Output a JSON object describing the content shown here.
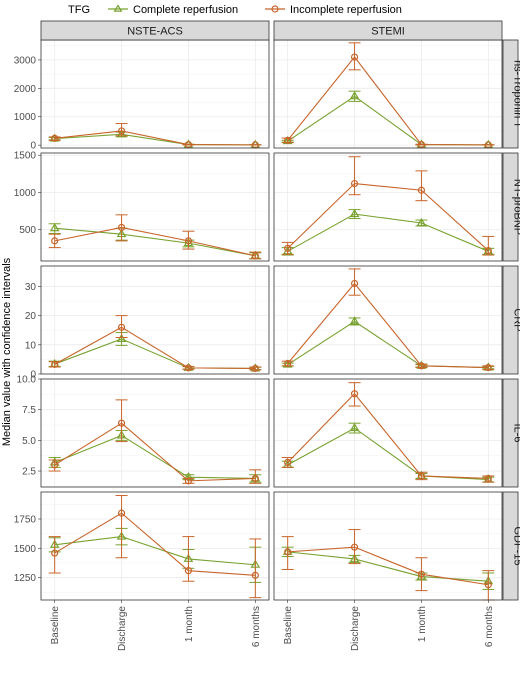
{
  "legend": {
    "title": "TFG",
    "items": [
      {
        "label": "Complete reperfusion",
        "color": "#78a22f",
        "marker": "triangle"
      },
      {
        "label": "Incomplete reperfusion",
        "color": "#c8642a",
        "marker": "circle"
      }
    ]
  },
  "y_axis_label": "Median value with confidence intervals",
  "columns": [
    "NSTE-ACS",
    "STEMI"
  ],
  "x_categories": [
    "Baseline",
    "Discharge",
    "1 month",
    "6 months"
  ],
  "chart_data": [
    {
      "type": "line",
      "row": "hs-Troponin T",
      "ylim": [
        -100,
        3700
      ],
      "yticks": [
        0,
        1000,
        2000,
        3000
      ],
      "ytick_labels": [
        "0",
        "1000",
        "2000",
        "3000"
      ],
      "panels": [
        {
          "column": "NSTE-ACS",
          "series": [
            {
              "name": "Complete reperfusion",
              "values": [
                230,
                380,
                20,
                10
              ],
              "lower": [
                190,
                300,
                10,
                5
              ],
              "upper": [
                270,
                460,
                30,
                15
              ]
            },
            {
              "name": "Incomplete reperfusion",
              "values": [
                240,
                500,
                20,
                10
              ],
              "lower": [
                170,
                330,
                10,
                5
              ],
              "upper": [
                290,
                760,
                30,
                15
              ]
            }
          ]
        },
        {
          "column": "STEMI",
          "series": [
            {
              "name": "Complete reperfusion",
              "values": [
                140,
                1720,
                20,
                10
              ],
              "lower": [
                110,
                1540,
                10,
                5
              ],
              "upper": [
                170,
                1900,
                30,
                15
              ]
            },
            {
              "name": "Incomplete reperfusion",
              "values": [
                170,
                3100,
                20,
                10
              ],
              "lower": [
                90,
                2650,
                10,
                5
              ],
              "upper": [
                250,
                3600,
                30,
                15
              ]
            }
          ]
        }
      ]
    },
    {
      "type": "line",
      "row": "NT-proBNP",
      "ylim": [
        80,
        1530
      ],
      "yticks": [
        500,
        1000,
        1500
      ],
      "ytick_labels": [
        "500",
        "1000",
        "1500"
      ],
      "panels": [
        {
          "column": "NSTE-ACS",
          "series": [
            {
              "name": "Complete reperfusion",
              "values": [
                520,
                440,
                320,
                150
              ],
              "lower": [
                450,
                360,
                270,
                110
              ],
              "upper": [
                580,
                520,
                360,
                190
              ]
            },
            {
              "name": "Incomplete reperfusion",
              "values": [
                350,
                530,
                350,
                150
              ],
              "lower": [
                260,
                350,
                240,
                110
              ],
              "upper": [
                440,
                700,
                480,
                200
              ]
            }
          ]
        },
        {
          "column": "STEMI",
          "series": [
            {
              "name": "Complete reperfusion",
              "values": [
                210,
                710,
                590,
                210
              ],
              "lower": [
                160,
                650,
                550,
                170
              ],
              "upper": [
                260,
                770,
                630,
                250
              ]
            },
            {
              "name": "Incomplete reperfusion",
              "values": [
                250,
                1120,
                1030,
                220
              ],
              "lower": [
                170,
                970,
                890,
                160
              ],
              "upper": [
                330,
                1480,
                1290,
                410
              ]
            }
          ]
        }
      ]
    },
    {
      "type": "line",
      "row": "CRP",
      "ylim": [
        0,
        37
      ],
      "yticks": [
        0,
        10,
        20,
        30
      ],
      "ytick_labels": [
        "0",
        "10",
        "20",
        "30"
      ],
      "panels": [
        {
          "column": "NSTE-ACS",
          "series": [
            {
              "name": "Complete reperfusion",
              "values": [
                3.4,
                12,
                2.1,
                1.9
              ],
              "lower": [
                2.6,
                9.8,
                1.7,
                1.5
              ],
              "upper": [
                4.4,
                14.2,
                2.5,
                2.3
              ]
            },
            {
              "name": "Incomplete reperfusion",
              "values": [
                3.3,
                16,
                2.1,
                1.9
              ],
              "lower": [
                2.4,
                12.5,
                1.6,
                1.4
              ],
              "upper": [
                4.2,
                20,
                2.6,
                2.4
              ]
            }
          ]
        },
        {
          "column": "STEMI",
          "series": [
            {
              "name": "Complete reperfusion",
              "values": [
                3.2,
                18,
                2.8,
                2.2
              ],
              "lower": [
                2.7,
                16.8,
                2.4,
                1.8
              ],
              "upper": [
                3.7,
                19.2,
                3.2,
                2.6
              ]
            },
            {
              "name": "Incomplete reperfusion",
              "values": [
                3.6,
                31,
                2.8,
                2.2
              ],
              "lower": [
                2.8,
                27,
                2.2,
                1.5
              ],
              "upper": [
                4.4,
                36,
                3.4,
                2.8
              ]
            }
          ]
        }
      ]
    },
    {
      "type": "line",
      "row": "IL-6",
      "ylim": [
        1.2,
        10.0
      ],
      "yticks": [
        2.5,
        5.0,
        7.5,
        10.0
      ],
      "ytick_labels": [
        "2.5",
        "5.0",
        "7.5",
        "10.0"
      ],
      "panels": [
        {
          "column": "NSTE-ACS",
          "series": [
            {
              "name": "Complete reperfusion",
              "values": [
                3.2,
                5.4,
                2.0,
                1.9
              ],
              "lower": [
                2.8,
                5.0,
                1.8,
                1.6
              ],
              "upper": [
                3.6,
                5.8,
                2.2,
                2.2
              ]
            },
            {
              "name": "Incomplete reperfusion",
              "values": [
                3.0,
                6.4,
                1.7,
                1.9
              ],
              "lower": [
                2.5,
                4.9,
                1.5,
                1.5
              ],
              "upper": [
                3.4,
                8.3,
                1.9,
                2.6
              ]
            }
          ]
        },
        {
          "column": "STEMI",
          "series": [
            {
              "name": "Complete reperfusion",
              "values": [
                3.0,
                6.0,
                2.1,
                1.8
              ],
              "lower": [
                2.8,
                5.6,
                1.9,
                1.6
              ],
              "upper": [
                3.3,
                6.4,
                2.3,
                2.0
              ]
            },
            {
              "name": "Incomplete reperfusion",
              "values": [
                3.2,
                8.8,
                2.1,
                1.9
              ],
              "lower": [
                2.8,
                7.8,
                1.8,
                1.6
              ],
              "upper": [
                3.6,
                9.7,
                2.4,
                2.1
              ]
            }
          ]
        }
      ]
    },
    {
      "type": "line",
      "row": "GDF-15",
      "ylim": [
        1060,
        1980
      ],
      "yticks": [
        1250,
        1500,
        1750
      ],
      "ytick_labels": [
        "1250",
        "1500",
        "1750"
      ],
      "panels": [
        {
          "column": "NSTE-ACS",
          "series": [
            {
              "name": "Complete reperfusion",
              "values": [
                1530,
                1600,
                1410,
                1360
              ],
              "lower": [
                1470,
                1530,
                1330,
                1210
              ],
              "upper": [
                1590,
                1670,
                1490,
                1510
              ]
            },
            {
              "name": "Incomplete reperfusion",
              "values": [
                1460,
                1800,
                1310,
                1270
              ],
              "lower": [
                1290,
                1420,
                1220,
                1080
              ],
              "upper": [
                1600,
                1950,
                1600,
                1580
              ]
            }
          ]
        },
        {
          "column": "STEMI",
          "series": [
            {
              "name": "Complete reperfusion",
              "values": [
                1470,
                1410,
                1260,
                1220
              ],
              "lower": [
                1430,
                1380,
                1230,
                1150
              ],
              "upper": [
                1510,
                1440,
                1290,
                1290
              ]
            },
            {
              "name": "Incomplete reperfusion",
              "values": [
                1470,
                1510,
                1280,
                1190
              ],
              "lower": [
                1320,
                1370,
                1140,
                1060
              ],
              "upper": [
                1600,
                1660,
                1420,
                1310
              ]
            }
          ]
        }
      ]
    }
  ]
}
